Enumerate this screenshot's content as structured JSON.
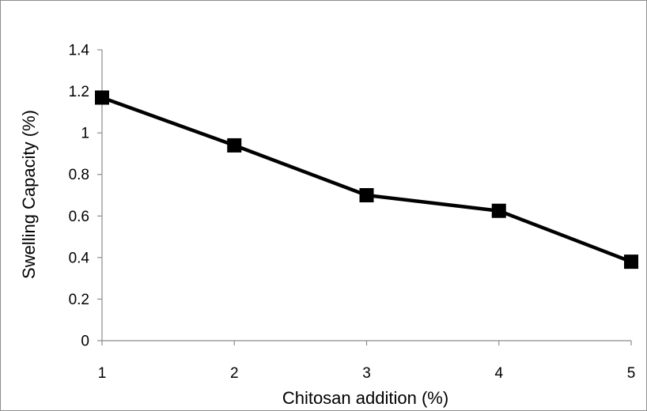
{
  "chart_data": {
    "type": "line",
    "title": "",
    "xlabel": "Chitosan addition (%)",
    "ylabel": "Swelling Capacity (%)",
    "x": [
      1,
      2,
      3,
      4,
      5
    ],
    "x_tick_labels": [
      "1",
      "2",
      "3",
      "4",
      "5"
    ],
    "y_ticks": [
      0,
      0.2,
      0.4,
      0.6,
      0.8,
      1,
      1.2,
      1.4
    ],
    "y_tick_labels": [
      "0",
      "0.2",
      "0.4",
      "0.6",
      "0.8",
      "1",
      "1.2",
      "1.4"
    ],
    "xlim": [
      1,
      5
    ],
    "ylim": [
      0,
      1.4
    ],
    "grid": false,
    "legend": "none",
    "series": [
      {
        "values": [
          1.17,
          0.94,
          0.7,
          0.625,
          0.38
        ],
        "color": "#000000",
        "marker": "square"
      }
    ]
  }
}
